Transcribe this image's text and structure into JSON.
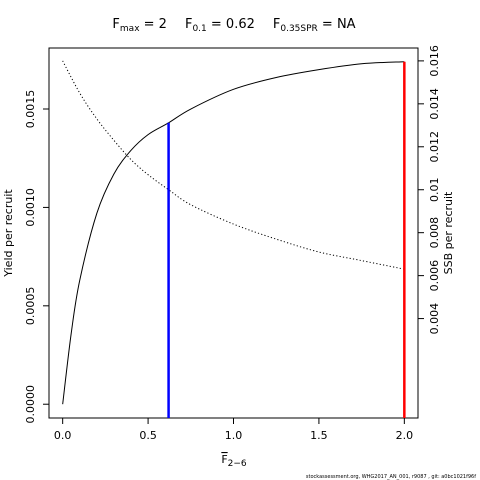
{
  "chart_data": {
    "type": "line",
    "title": {
      "fmax": {
        "F": "F",
        "sub": "max",
        "eq": " = 2"
      },
      "f01": {
        "F": "F",
        "sub": "0.1",
        "eq": " = 0.62"
      },
      "fspr": {
        "F": "F",
        "sub": "0.35SPR",
        "eq": " = NA"
      }
    },
    "xlabel": {
      "base": "F",
      "sub": "2−6"
    },
    "ylabel_left": "Yield per recruit",
    "ylabel_right": "SSB per recruit",
    "xlim": [
      -0.08,
      2.08
    ],
    "ylim_left": [
      -7e-05,
      0.00181
    ],
    "ylim_right": [
      -0.00063,
      0.0166
    ],
    "x_ticks": [
      0,
      0.5,
      1,
      1.5,
      2
    ],
    "x_tick_labels": [
      "0.0",
      "0.5",
      "1.0",
      "1.5",
      "2.0"
    ],
    "y_left_ticks": [
      0,
      0.0005,
      0.001,
      0.0015
    ],
    "y_left_tick_labels": [
      "0.0000",
      "0.0005",
      "0.0010",
      "0.0015"
    ],
    "y_right_ticks": [
      0.004,
      0.006,
      0.008,
      0.01,
      0.012,
      0.014,
      0.016
    ],
    "y_right_tick_labels": [
      "0.004",
      "0.006",
      "0.008",
      "0.01",
      "0.012",
      "0.014",
      "0.016"
    ],
    "series": [
      {
        "axis": "left",
        "style": "solid",
        "x": [
          0,
          0.05,
          0.1,
          0.2,
          0.3,
          0.4,
          0.5,
          0.62,
          0.75,
          1.0,
          1.25,
          1.5,
          1.75,
          2.0
        ],
        "y": [
          0,
          0.00036,
          0.00063,
          0.00097,
          0.00117,
          0.00129,
          0.00137,
          0.00143,
          0.0015,
          0.0016,
          0.00166,
          0.0017,
          0.00173,
          0.00174
        ]
      },
      {
        "axis": "right",
        "style": "dotted",
        "x": [
          0,
          0.1,
          0.2,
          0.3,
          0.4,
          0.5,
          0.62,
          0.75,
          1.0,
          1.25,
          1.5,
          1.75,
          2.0
        ],
        "y": [
          0.016,
          0.0145,
          0.0133,
          0.0123,
          0.0114,
          0.0107,
          0.01,
          0.0093,
          0.0084,
          0.0077,
          0.0071,
          0.0067,
          0.0063
        ]
      }
    ],
    "reference_lines": [
      {
        "name": "F0.1",
        "x": 0.62,
        "y": 0.00143,
        "color": "#0000ff"
      },
      {
        "name": "Fmax",
        "x": 2.0,
        "y": 0.00174,
        "color": "#ff0000"
      }
    ],
    "footer": "stockassessment.org, WHG2017_AN_001, r9087 , git: a0bc1021f96f"
  }
}
